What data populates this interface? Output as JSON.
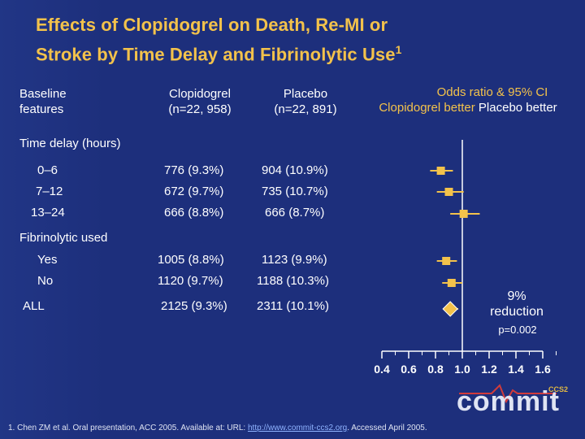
{
  "title_line1": "Effects of Clopidogrel on Death, Re-MI or",
  "title_line2": "Stroke by Time Delay and Fibrinolytic Use",
  "title_sup": "1",
  "headers": {
    "baseline1": "Baseline",
    "baseline2": "features",
    "clop1": "Clopidogrel",
    "clop2": "(n=22, 958)",
    "plac1": "Placebo",
    "plac2": "(n=22, 891)",
    "or1": "Odds ratio & 95% CI",
    "or2a": "Clopidogrel better",
    "or2b": "Placebo better"
  },
  "sections": {
    "time": "Time delay (hours)",
    "fib": "Fibrinolytic used"
  },
  "rows": [
    {
      "label": "0–6",
      "clop": "776 (9.3%)",
      "plac": "904 (10.9%)"
    },
    {
      "label": "7–12",
      "clop": "672 (9.7%)",
      "plac": "735 (10.7%)"
    },
    {
      "label": "13–24",
      "clop": "666 (8.8%)",
      "plac": "666 (8.7%)"
    },
    {
      "label": "Yes",
      "clop": "1005 (8.8%)",
      "plac": "1123 (9.9%)"
    },
    {
      "label": "No",
      "clop": "1120 (9.7%)",
      "plac": "1188 (10.3%)"
    },
    {
      "label": "ALL",
      "clop": "2125 (9.3%)",
      "plac": "2311 (10.1%)"
    }
  ],
  "annotation1": "9%",
  "annotation2": "reduction",
  "p_value": "p=0.002",
  "chart_data": {
    "type": "forest",
    "xlabel": "Odds ratio & 95% CI",
    "xlim": [
      0.4,
      1.6
    ],
    "xticks": [
      0.4,
      0.6,
      0.8,
      1.0,
      1.2,
      1.4,
      1.6
    ],
    "xtick_labels": [
      "0.4",
      "0.6",
      "0.8",
      "1.0",
      "1.2",
      "1.4",
      "1.6"
    ],
    "reference": 1.0,
    "points": [
      {
        "name": "0–6",
        "estimate": 0.84,
        "lower": 0.76,
        "upper": 0.93,
        "shape": "square"
      },
      {
        "name": "7–12",
        "estimate": 0.9,
        "lower": 0.81,
        "upper": 1.01,
        "shape": "square"
      },
      {
        "name": "13–24",
        "estimate": 1.01,
        "lower": 0.91,
        "upper": 1.13,
        "shape": "square"
      },
      {
        "name": "Yes",
        "estimate": 0.88,
        "lower": 0.81,
        "upper": 0.96,
        "shape": "square"
      },
      {
        "name": "No",
        "estimate": 0.92,
        "lower": 0.85,
        "upper": 1.0,
        "shape": "square"
      },
      {
        "name": "ALL",
        "estimate": 0.91,
        "lower": 0.86,
        "upper": 0.97,
        "shape": "diamond"
      }
    ]
  },
  "logo": "commit",
  "logo_sup": "CCS2",
  "footer_text": "1. Chen ZM et al. Oral presentation, ACC 2005. Available at: URL: ",
  "footer_link": "http://www.commit-ccs2.org",
  "footer_end": ". Accessed April 2005."
}
